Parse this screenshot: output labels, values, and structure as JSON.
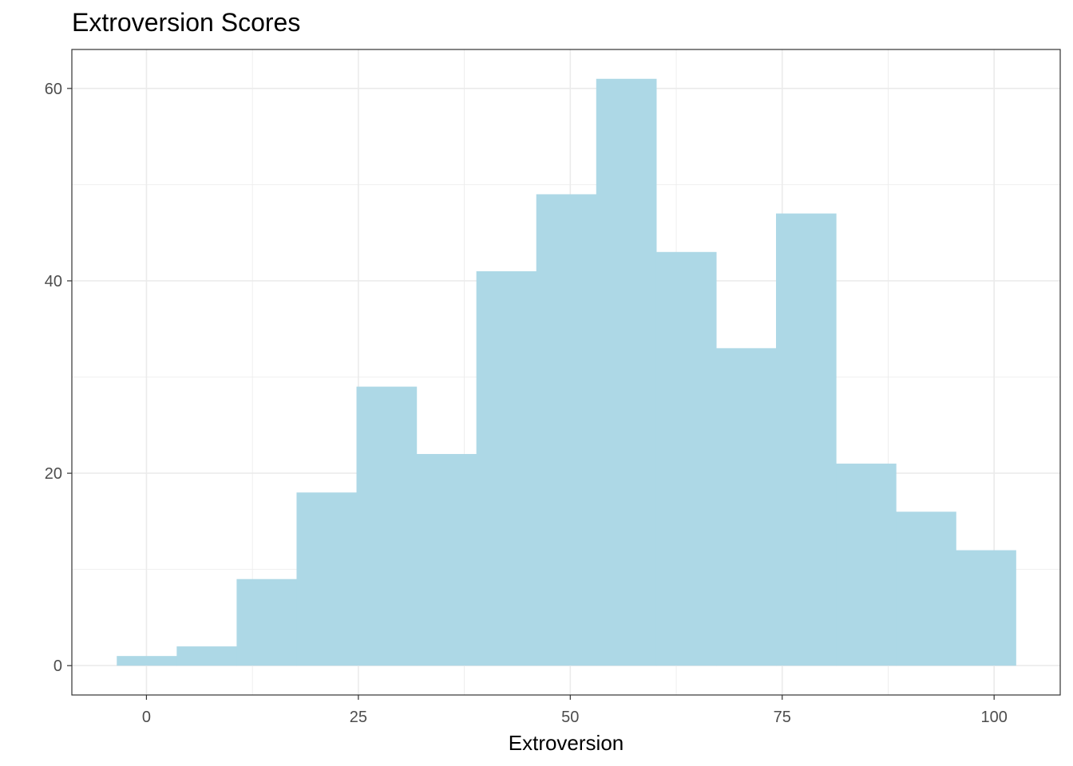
{
  "chart_data": {
    "type": "bar",
    "title": "Extroversion Scores",
    "xlabel": "Extroversion",
    "ylabel": "",
    "bin_width": 7.07,
    "bins": [
      {
        "x_start": -3.5,
        "x_end": 3.57,
        "count": 1
      },
      {
        "x_start": 3.57,
        "x_end": 10.64,
        "count": 2
      },
      {
        "x_start": 10.64,
        "x_end": 17.71,
        "count": 9
      },
      {
        "x_start": 17.71,
        "x_end": 24.78,
        "count": 18
      },
      {
        "x_start": 24.78,
        "x_end": 31.85,
        "count": 29
      },
      {
        "x_start": 31.85,
        "x_end": 38.92,
        "count": 22
      },
      {
        "x_start": 38.92,
        "x_end": 45.99,
        "count": 41
      },
      {
        "x_start": 45.99,
        "x_end": 53.06,
        "count": 49
      },
      {
        "x_start": 53.06,
        "x_end": 60.13,
        "count": 61
      },
      {
        "x_start": 60.13,
        "x_end": 67.2,
        "count": 43
      },
      {
        "x_start": 67.2,
        "x_end": 74.27,
        "count": 33
      },
      {
        "x_start": 74.27,
        "x_end": 81.34,
        "count": 47
      },
      {
        "x_start": 81.34,
        "x_end": 88.41,
        "count": 21
      },
      {
        "x_start": 88.41,
        "x_end": 95.48,
        "count": 16
      },
      {
        "x_start": 95.48,
        "x_end": 102.55,
        "count": 12
      }
    ],
    "xlim": [
      -8.8,
      107.8
    ],
    "ylim": [
      -3.05,
      64.05
    ],
    "x_ticks": [
      0,
      25,
      50,
      75,
      100
    ],
    "x_tick_labels": [
      "0",
      "25",
      "50",
      "75",
      "100"
    ],
    "y_ticks": [
      0,
      20,
      40,
      60
    ],
    "y_tick_labels": [
      "0",
      "20",
      "40",
      "60"
    ],
    "fill_color": "#add8e6",
    "grid": true,
    "grid_color": "#ebebeb",
    "theme": "bw"
  }
}
